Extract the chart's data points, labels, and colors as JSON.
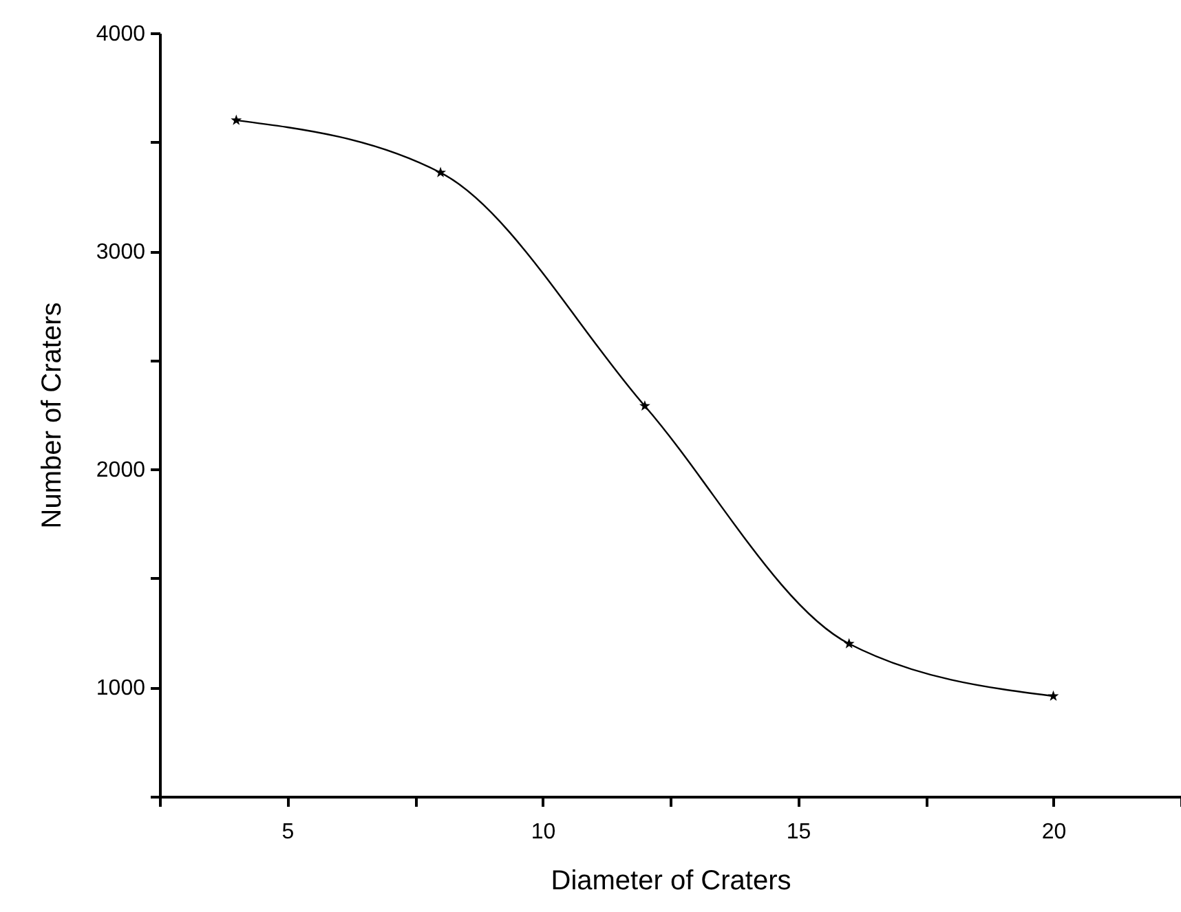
{
  "chart_data": {
    "type": "line",
    "xlabel": "Diameter of Craters",
    "ylabel": "Number of Craters",
    "x": [
      4,
      8,
      12,
      16,
      20
    ],
    "series": [
      {
        "color": "#000000",
        "values": [
          3600,
          3360,
          2290,
          1200,
          960
        ]
      }
    ],
    "xlim": [
      2.5,
      22.5
    ],
    "xticks": [
      {
        "value": 2.5,
        "label": null
      },
      5,
      {
        "value": 7.5,
        "label": null
      },
      10,
      {
        "value": 12.5,
        "label": null
      },
      15,
      {
        "value": 17.5,
        "label": null
      },
      20,
      {
        "value": 22.5,
        "label": null
      }
    ],
    "ylim": [
      500,
      4000
    ],
    "yticks": [
      {
        "value": 500,
        "label": null
      },
      1000,
      {
        "value": 1500,
        "label": null
      },
      2000,
      {
        "value": 2500,
        "label": null
      },
      3000,
      {
        "value": 3500,
        "label": null
      },
      4000
    ],
    "marker": "star",
    "line_style": "solid"
  }
}
